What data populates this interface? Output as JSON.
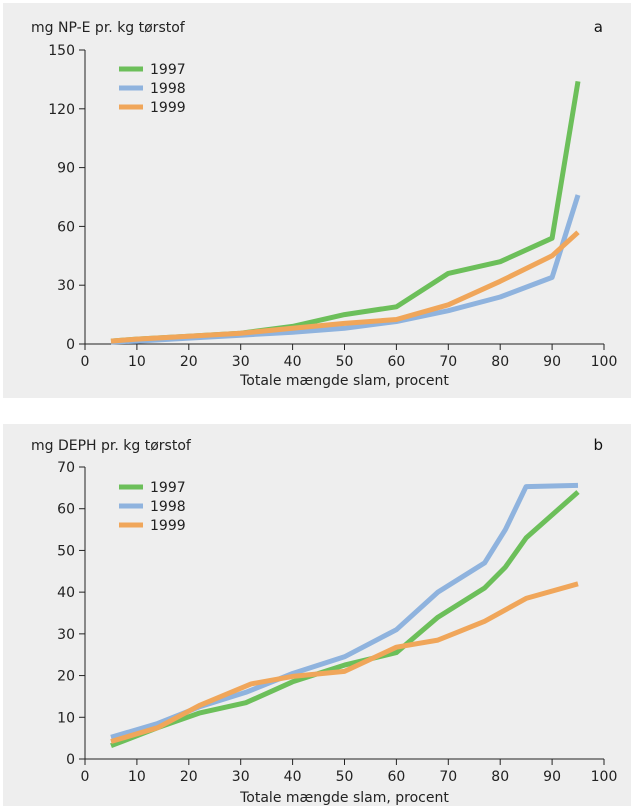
{
  "colors": {
    "1997": "#6cbf5a",
    "1998": "#8fb3de",
    "1999": "#f0a65a"
  },
  "chart_data": [
    {
      "type": "line",
      "panel_label": "a",
      "title": "",
      "ylabel": "mg NP-E pr. kg tørstof",
      "xlabel": "Totale mængde slam, procent",
      "xlim": [
        0,
        100
      ],
      "ylim": [
        0,
        150
      ],
      "xticks": [
        0,
        10,
        20,
        30,
        40,
        50,
        60,
        70,
        80,
        90,
        100
      ],
      "yticks": [
        0,
        30,
        60,
        90,
        120,
        150
      ],
      "grid": false,
      "legend": "top-left",
      "series": [
        {
          "name": "1997",
          "color": "#6cbf5a",
          "x": [
            5,
            10,
            20,
            30,
            40,
            50,
            60,
            70,
            80,
            90,
            95
          ],
          "y": [
            1.5,
            2.5,
            4,
            5.5,
            9,
            15,
            19,
            36,
            42,
            54,
            134
          ]
        },
        {
          "name": "1998",
          "color": "#8fb3de",
          "x": [
            5,
            10,
            20,
            30,
            40,
            50,
            60,
            70,
            80,
            90,
            95
          ],
          "y": [
            1,
            1.5,
            3,
            4.5,
            6,
            8,
            11.5,
            17,
            24,
            34,
            76
          ]
        },
        {
          "name": "1999",
          "color": "#f0a65a",
          "x": [
            5,
            10,
            20,
            30,
            40,
            50,
            60,
            70,
            80,
            90,
            95
          ],
          "y": [
            1.5,
            2.5,
            4,
            5.5,
            8,
            10.5,
            12.5,
            20,
            32,
            45,
            57
          ]
        }
      ]
    },
    {
      "type": "line",
      "panel_label": "b",
      "title": "",
      "ylabel": "mg DEPH pr. kg tørstof",
      "xlabel": "Totale mængde slam, procent",
      "xlim": [
        0,
        100
      ],
      "ylim": [
        0,
        70
      ],
      "xticks": [
        0,
        10,
        20,
        30,
        40,
        50,
        60,
        70,
        80,
        90,
        100
      ],
      "yticks": [
        0,
        10,
        20,
        30,
        40,
        50,
        60,
        70
      ],
      "grid": false,
      "legend": "top-left",
      "series": [
        {
          "name": "1997",
          "color": "#6cbf5a",
          "x": [
            5,
            14,
            22,
            31,
            40,
            50,
            60,
            68,
            77,
            81,
            85,
            95
          ],
          "y": [
            3.2,
            7.5,
            11,
            13.5,
            18.5,
            22.5,
            25.5,
            34,
            41,
            46,
            53,
            64
          ]
        },
        {
          "name": "1998",
          "color": "#8fb3de",
          "x": [
            5,
            14,
            22,
            31,
            40,
            50,
            60,
            68,
            77,
            81,
            85,
            95
          ],
          "y": [
            5.2,
            8.5,
            12.5,
            16,
            20.5,
            24.5,
            31,
            40,
            47,
            55,
            65.3,
            65.6
          ]
        },
        {
          "name": "1999",
          "color": "#f0a65a",
          "x": [
            5,
            14,
            22,
            32,
            40,
            50,
            60,
            68,
            77,
            85,
            95
          ],
          "y": [
            4.2,
            7.5,
            12.8,
            18,
            19.8,
            21,
            26.8,
            28.5,
            33,
            38.5,
            42
          ]
        }
      ]
    }
  ]
}
